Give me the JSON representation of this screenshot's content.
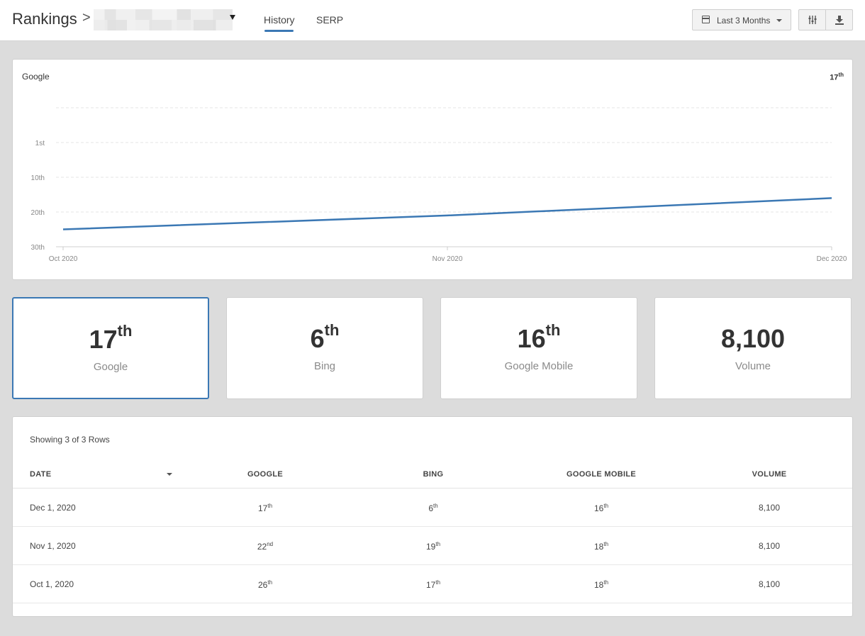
{
  "header": {
    "title": "Rankings",
    "separator": ">",
    "tabs": [
      {
        "label": "History",
        "active": true
      },
      {
        "label": "SERP",
        "active": false
      }
    ],
    "date_range_label": "Last 3 Months",
    "accent_color": "#3b78b4"
  },
  "chart_data": {
    "type": "line",
    "title": "Google",
    "current_value": {
      "num": "17",
      "sfx": "th"
    },
    "y_tick_labels": [
      "1st",
      "10th",
      "20th",
      "30th"
    ],
    "y_reversed": true,
    "ylim": [
      -9,
      31
    ],
    "x": [
      "Oct 2020",
      "Nov 2020",
      "Dec 2020"
    ],
    "series": [
      {
        "values": [
          26,
          22,
          17
        ],
        "color": "#3b78b4"
      }
    ],
    "grid": true,
    "legend": "none"
  },
  "stats": [
    {
      "num": "17",
      "sfx": "th",
      "label": "Google",
      "selected": true
    },
    {
      "num": "6",
      "sfx": "th",
      "label": "Bing",
      "selected": false
    },
    {
      "num": "16",
      "sfx": "th",
      "label": "Google Mobile",
      "selected": false
    },
    {
      "num": "8,100",
      "sfx": "",
      "label": "Volume",
      "selected": false
    }
  ],
  "table": {
    "showing_text": "Showing 3 of 3 Rows",
    "columns": [
      "DATE",
      "GOOGLE",
      "BING",
      "GOOGLE MOBILE",
      "VOLUME"
    ],
    "rows": [
      {
        "date": "Dec 1, 2020",
        "google": {
          "num": "17",
          "sfx": "th"
        },
        "bing": {
          "num": "6",
          "sfx": "th"
        },
        "mobile": {
          "num": "16",
          "sfx": "th"
        },
        "volume": "8,100"
      },
      {
        "date": "Nov 1, 2020",
        "google": {
          "num": "22",
          "sfx": "nd"
        },
        "bing": {
          "num": "19",
          "sfx": "th"
        },
        "mobile": {
          "num": "18",
          "sfx": "th"
        },
        "volume": "8,100"
      },
      {
        "date": "Oct 1, 2020",
        "google": {
          "num": "26",
          "sfx": "th"
        },
        "bing": {
          "num": "17",
          "sfx": "th"
        },
        "mobile": {
          "num": "18",
          "sfx": "th"
        },
        "volume": "8,100"
      }
    ]
  }
}
